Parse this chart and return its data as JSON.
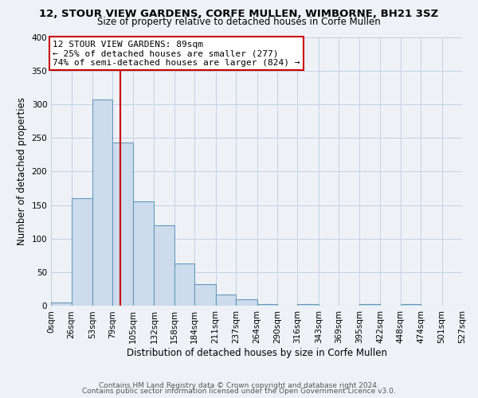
{
  "title": "12, STOUR VIEW GARDENS, CORFE MULLEN, WIMBORNE, BH21 3SZ",
  "subtitle": "Size of property relative to detached houses in Corfe Mullen",
  "xlabel": "Distribution of detached houses by size in Corfe Mullen",
  "ylabel": "Number of detached properties",
  "footer_line1": "Contains HM Land Registry data © Crown copyright and database right 2024.",
  "footer_line2": "Contains public sector information licensed under the Open Government Licence v3.0.",
  "bar_edges": [
    0,
    26,
    53,
    79,
    105,
    132,
    158,
    184,
    211,
    237,
    264,
    290,
    316,
    343,
    369,
    395,
    422,
    448,
    474,
    501,
    527
  ],
  "bar_heights": [
    5,
    160,
    307,
    243,
    155,
    120,
    63,
    33,
    17,
    10,
    3,
    0,
    3,
    0,
    0,
    3,
    0,
    3,
    0,
    0
  ],
  "bar_color": "#ccdcec",
  "bar_edge_color": "#6699bb",
  "vline_x": 89,
  "vline_color": "#cc0000",
  "annotation_line1": "12 STOUR VIEW GARDENS: 89sqm",
  "annotation_line2": "← 25% of detached houses are smaller (277)",
  "annotation_line3": "74% of semi-detached houses are larger (824) →",
  "annotation_box_facecolor": "#ffffff",
  "annotation_box_edgecolor": "#cc0000",
  "ylim": [
    0,
    400
  ],
  "yticks": [
    0,
    50,
    100,
    150,
    200,
    250,
    300,
    350,
    400
  ],
  "bg_color": "#eef2f7",
  "plot_bg_color": "#eef2f7",
  "grid_color": "#c5cfe0",
  "title_fontsize": 9.5,
  "subtitle_fontsize": 8.5,
  "tick_fontsize": 7.5,
  "ylabel_fontsize": 8.5,
  "xlabel_fontsize": 8.5,
  "footer_fontsize": 6.5,
  "annotation_fontsize": 8
}
